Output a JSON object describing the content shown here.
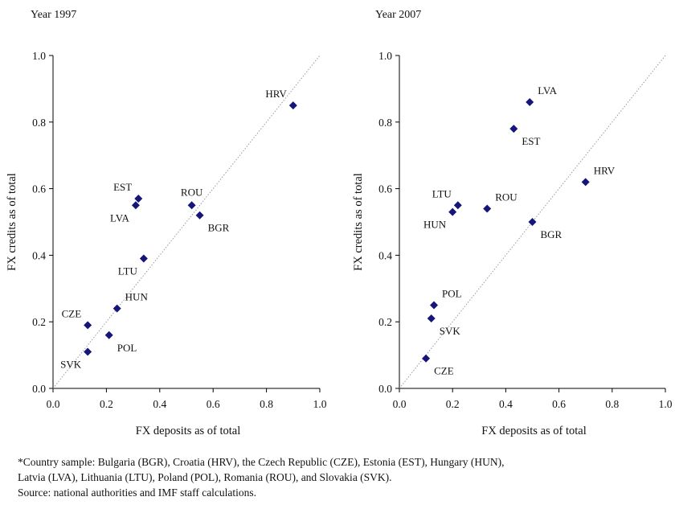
{
  "chart_data": [
    {
      "type": "scatter",
      "title": "Year 1997",
      "xlabel": "FX deposits as of total",
      "ylabel": "FX credits as of total",
      "xlim": [
        0.0,
        1.0
      ],
      "ylim": [
        0.0,
        1.0
      ],
      "xticks": [
        "0.0",
        "0.2",
        "0.4",
        "0.6",
        "0.8",
        "1.0"
      ],
      "yticks": [
        "0.0",
        "0.2",
        "0.4",
        "0.6",
        "0.8",
        "1.0"
      ],
      "reference_line": "45-degree",
      "grid": false,
      "points": [
        {
          "label": "HRV",
          "x": 0.9,
          "y": 0.85,
          "label_pos": "upper-left"
        },
        {
          "label": "EST",
          "x": 0.32,
          "y": 0.57,
          "label_pos": "upper-left"
        },
        {
          "label": "LVA",
          "x": 0.31,
          "y": 0.55,
          "label_pos": "lower-left"
        },
        {
          "label": "ROU",
          "x": 0.52,
          "y": 0.55,
          "label_pos": "upper-center"
        },
        {
          "label": "BGR",
          "x": 0.55,
          "y": 0.52,
          "label_pos": "lower-right"
        },
        {
          "label": "LTU",
          "x": 0.34,
          "y": 0.39,
          "label_pos": "lower-left"
        },
        {
          "label": "HUN",
          "x": 0.24,
          "y": 0.24,
          "label_pos": "upper-right"
        },
        {
          "label": "CZE",
          "x": 0.13,
          "y": 0.19,
          "label_pos": "upper-left"
        },
        {
          "label": "POL",
          "x": 0.21,
          "y": 0.16,
          "label_pos": "lower-right"
        },
        {
          "label": "SVK",
          "x": 0.13,
          "y": 0.11,
          "label_pos": "lower-left"
        }
      ]
    },
    {
      "type": "scatter",
      "title": "Year 2007",
      "xlabel": "FX deposits as of total",
      "ylabel": "FX credits as of total",
      "xlim": [
        0.0,
        1.0
      ],
      "ylim": [
        0.0,
        1.0
      ],
      "xticks": [
        "0.0",
        "0.2",
        "0.4",
        "0.6",
        "0.8",
        "1.0"
      ],
      "yticks": [
        "0.0",
        "0.2",
        "0.4",
        "0.6",
        "0.8",
        "1.0"
      ],
      "reference_line": "45-degree",
      "grid": false,
      "points": [
        {
          "label": "LVA",
          "x": 0.49,
          "y": 0.86,
          "label_pos": "upper-right"
        },
        {
          "label": "EST",
          "x": 0.43,
          "y": 0.78,
          "label_pos": "lower-right"
        },
        {
          "label": "HRV",
          "x": 0.7,
          "y": 0.62,
          "label_pos": "upper-right"
        },
        {
          "label": "LTU",
          "x": 0.22,
          "y": 0.55,
          "label_pos": "upper-left"
        },
        {
          "label": "HUN",
          "x": 0.2,
          "y": 0.53,
          "label_pos": "lower-left"
        },
        {
          "label": "ROU",
          "x": 0.33,
          "y": 0.54,
          "label_pos": "upper-right"
        },
        {
          "label": "BGR",
          "x": 0.5,
          "y": 0.5,
          "label_pos": "lower-right"
        },
        {
          "label": "POL",
          "x": 0.13,
          "y": 0.25,
          "label_pos": "upper-right"
        },
        {
          "label": "SVK",
          "x": 0.12,
          "y": 0.21,
          "label_pos": "lower-right"
        },
        {
          "label": "CZE",
          "x": 0.1,
          "y": 0.09,
          "label_pos": "lower-right"
        }
      ]
    }
  ],
  "marker_color": "#16167a",
  "reference_line_color": "#9a9a9a",
  "notes": {
    "sample_line1": "*Country sample:  Bulgaria (BGR), Croatia (HRV), the Czech Republic (CZE), Estonia (EST), Hungary (HUN),",
    "sample_line2": "Latvia (LVA), Lithuania (LTU), Poland (POL), Romania (ROU), and Slovakia (SVK).",
    "source": "Source: national authorities and IMF staff calculations."
  }
}
